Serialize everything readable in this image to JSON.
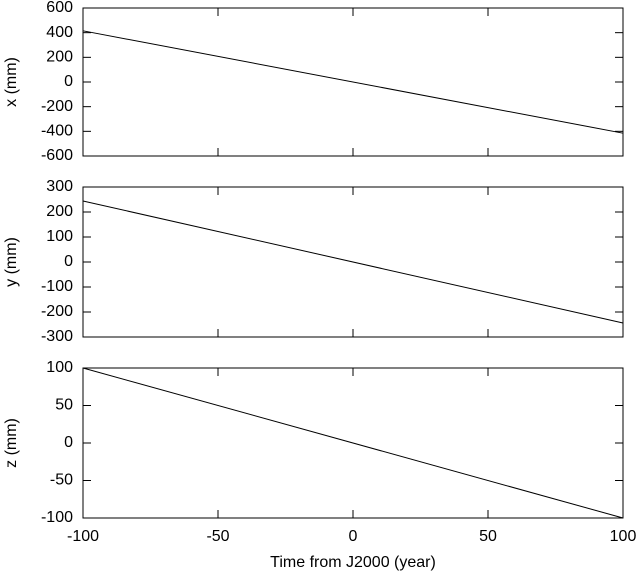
{
  "chart_data": [
    {
      "type": "line",
      "ylabel": "x (mm)",
      "x": [
        -100,
        100
      ],
      "values": [
        415,
        -415
      ],
      "color": "#000000",
      "xlim": [
        -100,
        100
      ],
      "ylim": [
        -600,
        600
      ],
      "yticks": [
        -600,
        -400,
        -200,
        0,
        200,
        400,
        600
      ]
    },
    {
      "type": "line",
      "ylabel": "y (mm)",
      "x": [
        -100,
        100
      ],
      "values": [
        244,
        -244
      ],
      "color": "#000000",
      "xlim": [
        -100,
        100
      ],
      "ylim": [
        -300,
        300
      ],
      "yticks": [
        -300,
        -200,
        -100,
        0,
        100,
        200,
        300
      ]
    },
    {
      "type": "line",
      "ylabel": "z (mm)",
      "xlabel": "Time from J2000 (year)",
      "x": [
        -100,
        100
      ],
      "values": [
        100,
        -100
      ],
      "color": "#000000",
      "xlim": [
        -100,
        100
      ],
      "ylim": [
        -100,
        100
      ],
      "yticks": [
        -100,
        -50,
        0,
        50,
        100
      ],
      "xticks": [
        -100,
        -50,
        0,
        50,
        100
      ]
    }
  ]
}
